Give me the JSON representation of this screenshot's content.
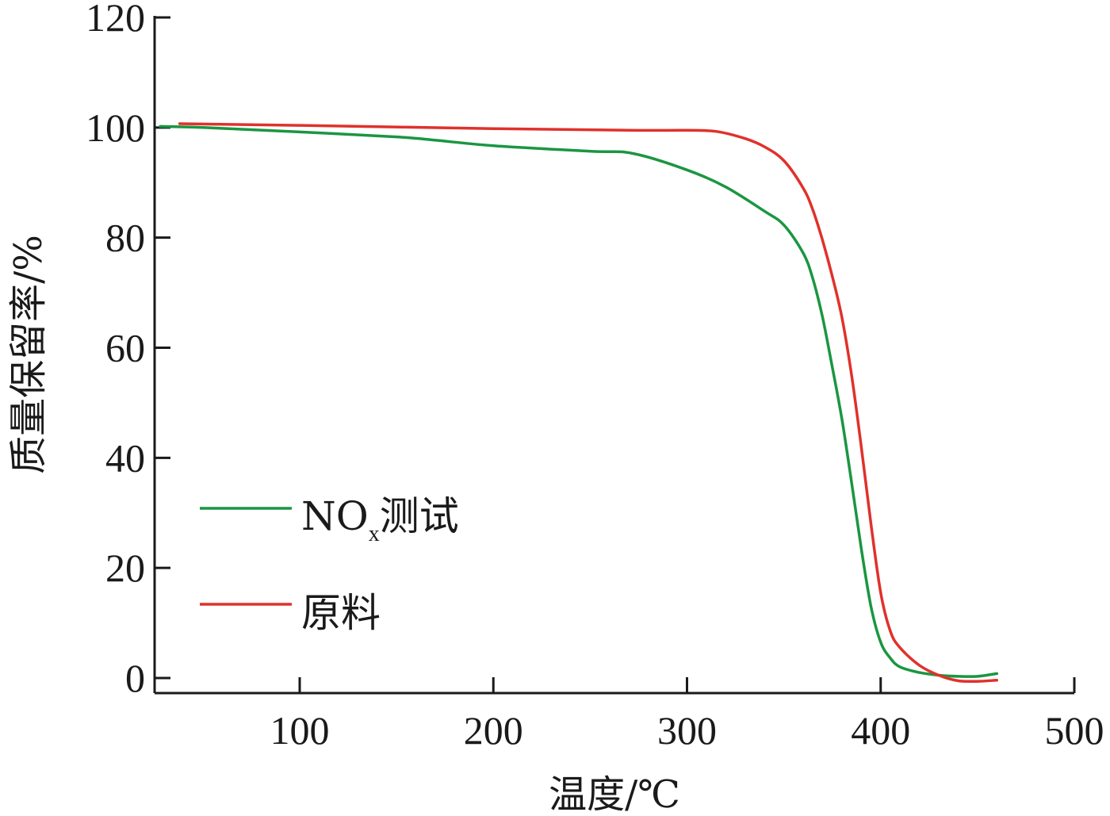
{
  "chart_data": {
    "type": "line",
    "xlabel": "温度/℃",
    "ylabel": "质量保留率/%",
    "xlim": [
      28,
      500
    ],
    "ylim": [
      -3,
      120
    ],
    "xticks": [
      100,
      200,
      300,
      400,
      500
    ],
    "yticks": [
      0,
      20,
      40,
      60,
      80,
      100,
      120
    ],
    "grid": false,
    "legend_position": "bottom-left",
    "series": [
      {
        "name": "NOx测试",
        "legend_main": "NO",
        "legend_sub": "x",
        "legend_tail": "测试",
        "color": "#1a9641",
        "x": [
          28,
          50,
          100,
          150,
          170,
          200,
          250,
          272,
          300,
          320,
          340,
          350,
          360,
          365,
          370,
          375,
          380,
          385,
          390,
          395,
          400,
          405,
          410,
          420,
          430,
          440,
          450,
          460
        ],
        "y": [
          100.2,
          100,
          99.2,
          98.3,
          97.7,
          96.7,
          95.7,
          95.3,
          92.3,
          89.2,
          84.8,
          82.3,
          77.2,
          72.5,
          65.5,
          56.5,
          47,
          35.5,
          23.5,
          13,
          6.5,
          3.6,
          2,
          1,
          0.5,
          0.3,
          0.3,
          0.8
        ]
      },
      {
        "name": "原料",
        "legend_main": "原料",
        "legend_sub": "",
        "legend_tail": "",
        "color": "#e0312b",
        "x": [
          38,
          100,
          200,
          270,
          300,
          315,
          330,
          340,
          350,
          360,
          365,
          370,
          375,
          380,
          385,
          390,
          395,
          400,
          405,
          410,
          420,
          430,
          440,
          450,
          460
        ],
        "y": [
          100.7,
          100.4,
          99.8,
          99.5,
          99.5,
          99.3,
          98,
          96.5,
          94,
          89,
          85,
          79.5,
          73,
          65.5,
          55,
          42,
          28,
          15.5,
          8.5,
          5.5,
          2.3,
          0.5,
          -0.5,
          -0.6,
          -0.4
        ]
      }
    ]
  }
}
